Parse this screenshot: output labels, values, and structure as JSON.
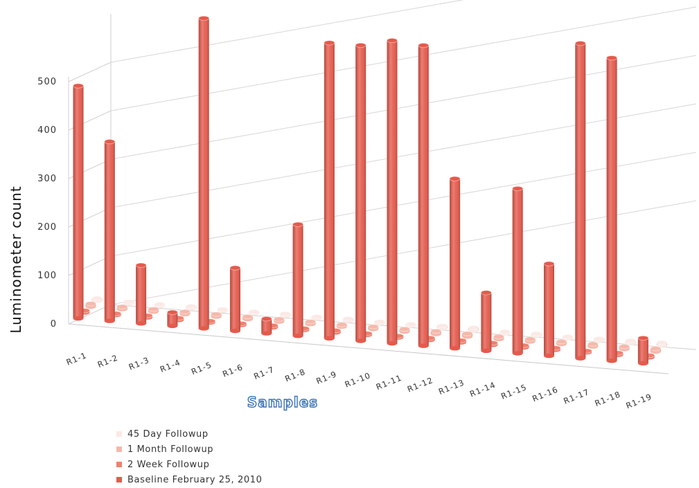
{
  "chart_data": {
    "type": "bar",
    "subtype": "3d-column",
    "xlabel": "Samples",
    "ylabel": "Luminometer count",
    "ylim": [
      0,
      600
    ],
    "yticks": [
      0,
      100,
      200,
      300,
      400,
      500
    ],
    "grid": true,
    "legend_position": "bottom-left",
    "categories": [
      "R1-1",
      "R1-2",
      "R1-3",
      "R1-4",
      "R1-5",
      "R1-6",
      "R1-7",
      "R1-8",
      "R1-9",
      "R1-10",
      "R1-11",
      "R1-12",
      "R1-13",
      "R1-14",
      "R1-15",
      "R1-16",
      "R1-17",
      "R1-18",
      "R1-19"
    ],
    "series": [
      {
        "name": "45 Day Followup",
        "color": "#fbe9e5",
        "values": [
          5,
          3,
          3,
          4,
          3,
          3,
          4,
          3,
          4,
          3,
          3,
          5,
          6,
          3,
          4,
          3,
          4,
          5,
          6
        ]
      },
      {
        "name": "1 Month Followup",
        "color": "#f5b9ab",
        "values": [
          6,
          5,
          5,
          5,
          5,
          5,
          5,
          5,
          4,
          5,
          5,
          6,
          6,
          5,
          5,
          5,
          5,
          5,
          6
        ]
      },
      {
        "name": "2 Week Followup",
        "color": "#ee8070",
        "values": [
          4,
          3,
          4,
          4,
          3,
          3,
          4,
          3,
          4,
          3,
          3,
          4,
          4,
          4,
          4,
          4,
          3,
          4,
          4
        ]
      },
      {
        "name": "Baseline February 25, 2010",
        "color": "#e55a4c",
        "values": [
          480,
          370,
          120,
          28,
          640,
          130,
          30,
          230,
          610,
          610,
          625,
          620,
          350,
          120,
          340,
          190,
          650,
          625,
          52
        ]
      }
    ]
  }
}
